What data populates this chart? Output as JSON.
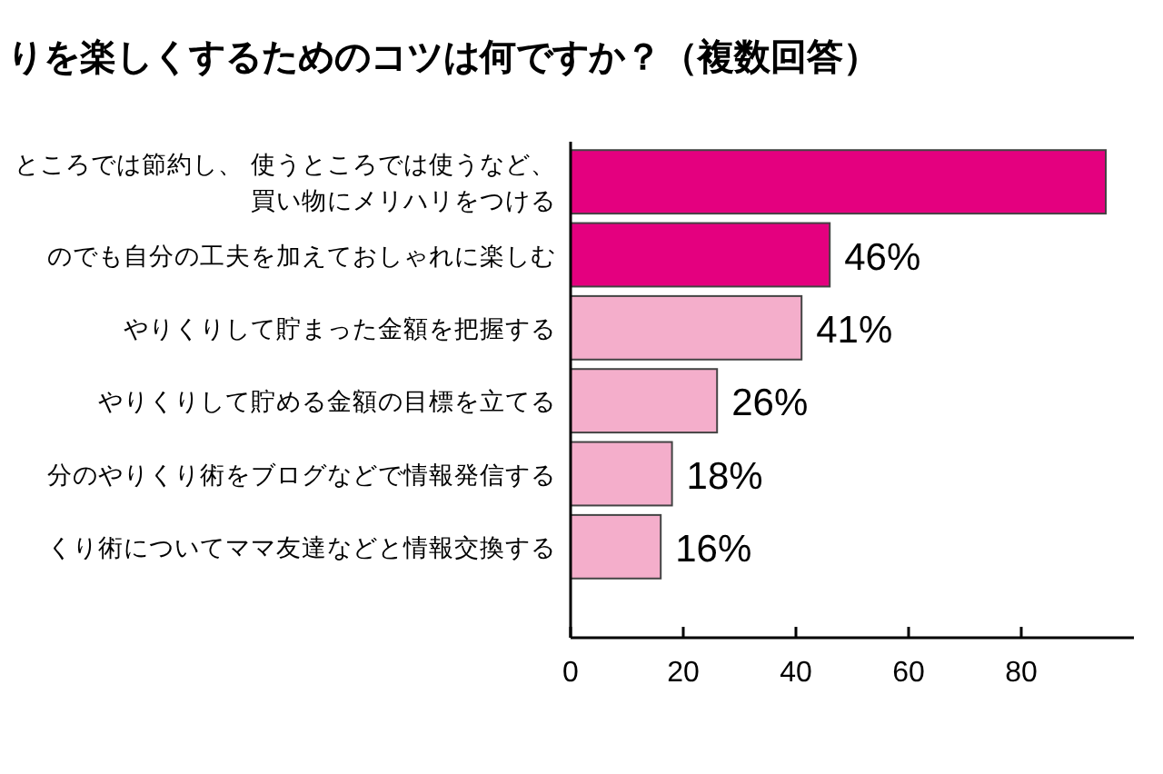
{
  "chart_data": {
    "type": "bar",
    "orientation": "horizontal",
    "title": "りを楽しくするためのコツは何ですか？（複数回答）",
    "categories": [
      "ところでは節約し、 使うところでは使うなど、買い物にメリハリをつける",
      "のでも自分の工夫を加えておしゃれに楽しむ",
      "やりくりして貯まった金額を把握する",
      "やりくりして貯める金額の目標を立てる",
      "分のやりくり術をブログなどで情報発信する",
      "くり術についてママ友達などと情報交換する"
    ],
    "values": [
      95,
      46,
      41,
      26,
      18,
      16
    ],
    "colors": [
      "#e4007f",
      "#e4007f",
      "#f4aecb",
      "#f4aecb",
      "#f4aecb",
      "#f4aecb"
    ],
    "value_labels": [
      null,
      "46%",
      "41%",
      "26%",
      "18%",
      "16%"
    ],
    "xlim": [
      0,
      100
    ],
    "xticks": [
      0,
      20,
      40,
      60,
      80
    ],
    "grid": false
  }
}
